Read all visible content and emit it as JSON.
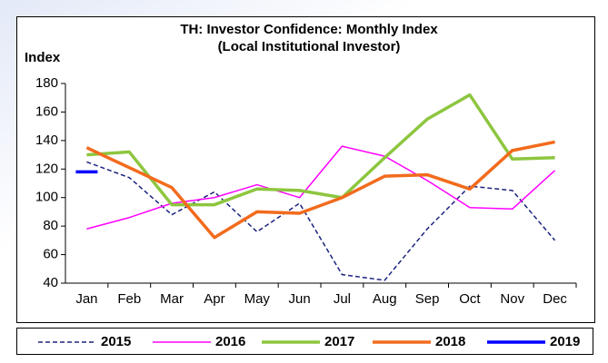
{
  "chart_data": {
    "type": "line",
    "title": "TH: Investor Confidence: Monthly Index",
    "subtitle": "(Local Institutional Investor)",
    "y_label": "Index",
    "categories": [
      "Jan",
      "Feb",
      "Mar",
      "Apr",
      "May",
      "Jun",
      "Jul",
      "Aug",
      "Sep",
      "Oct",
      "Nov",
      "Dec"
    ],
    "series": [
      {
        "name": "2015",
        "color": "#1a237e",
        "dashed": true,
        "weight": "thin",
        "values": [
          125,
          114,
          88,
          104,
          76,
          96,
          46,
          42,
          78,
          108,
          105,
          70
        ]
      },
      {
        "name": "2016",
        "color": "#ff00ff",
        "dashed": false,
        "weight": "thin",
        "values": [
          78,
          86,
          96,
          100,
          109,
          100,
          136,
          129,
          112,
          93,
          92,
          119
        ]
      },
      {
        "name": "2017",
        "color": "#8dc63f",
        "dashed": false,
        "weight": "thick",
        "values": [
          130,
          132,
          95,
          95,
          106,
          105,
          100,
          128,
          155,
          172,
          127,
          128
        ]
      },
      {
        "name": "2018",
        "color": "#f26b1d",
        "dashed": false,
        "weight": "thick",
        "values": [
          135,
          121,
          107,
          72,
          90,
          89,
          100,
          115,
          116,
          106,
          133,
          139
        ]
      },
      {
        "name": "2019",
        "color": "#0000ff",
        "dashed": false,
        "weight": "thick",
        "values": [
          118,
          null,
          null,
          null,
          null,
          null,
          null,
          null,
          null,
          null,
          null,
          null
        ]
      }
    ],
    "ylim": [
      40,
      180
    ],
    "yticks": [
      40,
      60,
      80,
      100,
      120,
      140,
      160,
      180
    ],
    "grid": false,
    "legend": "bottom"
  }
}
